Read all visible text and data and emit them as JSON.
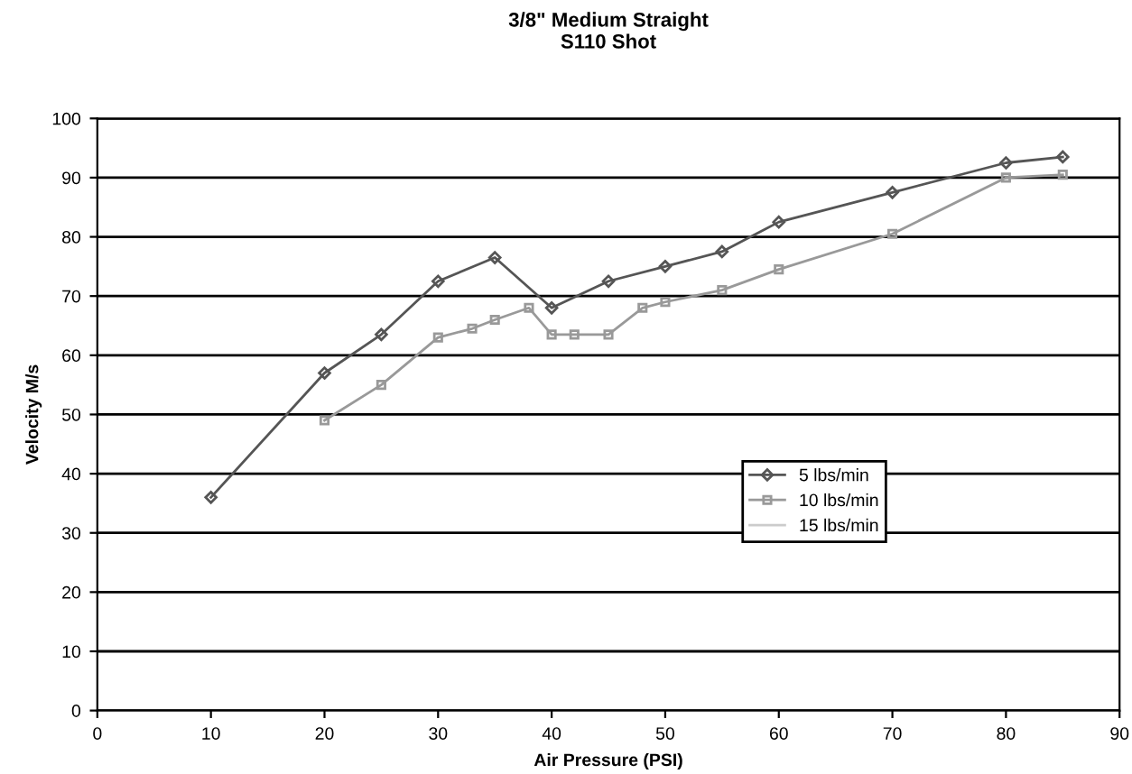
{
  "chart_data": {
    "type": "line",
    "title": "3/8\" Medium Straight\nS110 Shot",
    "xlabel": "Air Pressure (PSI)",
    "ylabel": "Velocity M/s",
    "xlim": [
      0,
      90
    ],
    "xticks": [
      0,
      10,
      20,
      30,
      40,
      50,
      60,
      70,
      80,
      90
    ],
    "ylim": [
      0,
      100
    ],
    "yticks": [
      0,
      10,
      20,
      30,
      40,
      50,
      60,
      70,
      80,
      90,
      100
    ],
    "grid": "y",
    "legend": "bottom right",
    "series": [
      {
        "name": "5 lbs/min",
        "color": "#555555",
        "marker": "diamond",
        "x": [
          10,
          20,
          25,
          30,
          35,
          40,
          45,
          50,
          55,
          60,
          70,
          80,
          85
        ],
        "values": [
          36,
          57,
          63.5,
          72.5,
          76.5,
          68,
          72.5,
          75,
          77.5,
          82.5,
          87.5,
          92.5,
          93.5
        ]
      },
      {
        "name": "10 lbs/min",
        "color": "#999999",
        "marker": "square",
        "x": [
          20,
          25,
          30,
          33,
          35,
          38,
          40,
          42,
          45,
          48,
          50,
          55,
          60,
          70,
          80,
          85
        ],
        "values": [
          49,
          55,
          63,
          64.5,
          66,
          68,
          63.5,
          63.5,
          63.5,
          68,
          69,
          71,
          74.5,
          80.5,
          90,
          90.5
        ]
      },
      {
        "name": "15 lbs/min",
        "color": "#cccccc",
        "marker": "none"
      }
    ]
  }
}
